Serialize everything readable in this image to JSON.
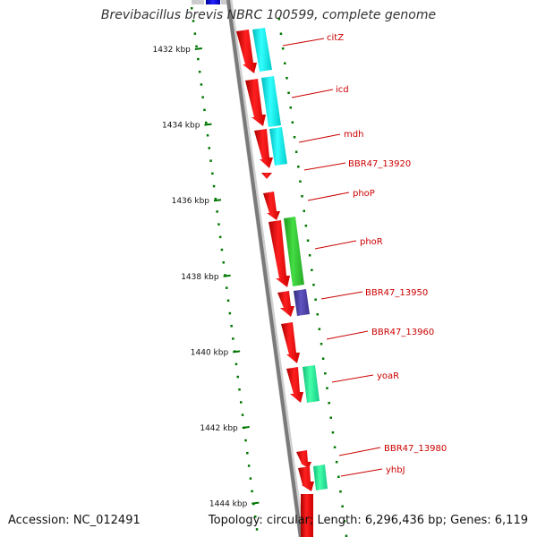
{
  "title": "Brevibacillus brevis NBRC 100599, complete genome",
  "footer": {
    "accession": "Accession: NC_012491",
    "topology": "Topology: circular; Length: 6,296,436 bp; Genes: 6,119"
  },
  "scale_labels": [
    "1432 kbp",
    "1434 kbp",
    "1436 kbp",
    "1438 kbp",
    "1440 kbp",
    "1442 kbp",
    "1444 kbp"
  ],
  "colors": {
    "backbone": "#888888",
    "forward_gene": "#ff0000",
    "cds_cyan": "#00ffff",
    "cds_green": "#33cc33",
    "cds_purple": "#4a3fa0",
    "cds_seagreen": "#22ee99",
    "dotted_guide": "#007700",
    "label": "#cc0000",
    "top_blue": "#0000cc"
  },
  "genes": [
    {
      "name": "citZ"
    },
    {
      "name": "icd"
    },
    {
      "name": "mdh"
    },
    {
      "name": "BBR47_13920"
    },
    {
      "name": "phoP"
    },
    {
      "name": "phoR"
    },
    {
      "name": "BBR47_13950"
    },
    {
      "name": "BBR47_13960"
    },
    {
      "name": "yoaR"
    },
    {
      "name": "BBR47_13980"
    },
    {
      "name": "yhbJ"
    }
  ]
}
